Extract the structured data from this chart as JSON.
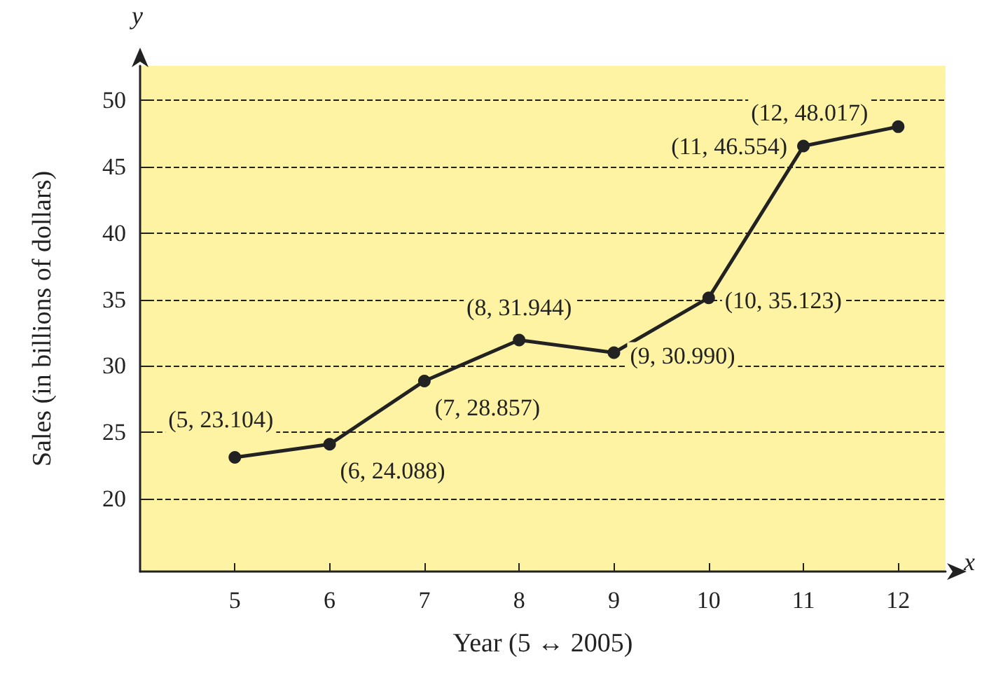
{
  "chart_data": {
    "type": "line",
    "xlabel": "Year (5 ↔ 2005)",
    "ylabel": "Sales (in billions of dollars)",
    "annotations": [
      "x",
      "y"
    ],
    "x": [
      5,
      6,
      7,
      8,
      9,
      10,
      11,
      12
    ],
    "series": [
      {
        "color": "#222222",
        "values": [
          23.104,
          24.088,
          28.857,
          31.944,
          30.99,
          35.123,
          46.554,
          48.017
        ],
        "value_labels": [
          "(5, 23.104)",
          "(6, 24.088)",
          "(7, 28.857)",
          "(8, 31.944)",
          "(9, 30.990)",
          "(10, 35.123)",
          "(11, 46.554)",
          "(12, 48.017)"
        ]
      }
    ],
    "xlim": [
      4,
      12.5
    ],
    "xticks": [
      5,
      6,
      7,
      8,
      9,
      10,
      11,
      12
    ],
    "ylim": [
      14.5,
      52.6
    ],
    "yticks": [
      20,
      25,
      30,
      35,
      40,
      45,
      50
    ],
    "grid": "y",
    "marker": "circle",
    "line_style": "solid"
  }
}
